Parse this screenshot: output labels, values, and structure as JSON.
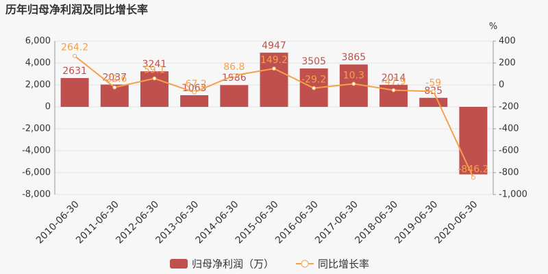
{
  "chart_data": {
    "type": "combo",
    "title": "历年归母净利润及同比增长率",
    "categories": [
      "2010-06-30",
      "2011-06-30",
      "2012-06-30",
      "2013-06-30",
      "2014-06-30",
      "2015-06-30",
      "2016-06-30",
      "2017-06-30",
      "2018-06-30",
      "2019-06-30",
      "2020-06-30"
    ],
    "series": [
      {
        "name": "归母净利润（万）",
        "type": "bar",
        "color": "#c0504d",
        "values": [
          2631,
          2037,
          3241,
          1063,
          1986,
          4947,
          3505,
          3865,
          2014,
          825,
          -6160
        ]
      },
      {
        "name": "同比增长率",
        "type": "line",
        "axis": "y2",
        "color": "#f5a04a",
        "values": [
          264.2,
          -22.6,
          59.1,
          -67.2,
          86.8,
          149.2,
          -29.2,
          10.3,
          -47.9,
          -59,
          -846.2
        ]
      }
    ],
    "ylim": [
      -8000,
      6000
    ],
    "yticks": [
      {
        "value": -8000,
        "label": "-8,000"
      },
      {
        "value": -6000,
        "label": "-6,000"
      },
      {
        "value": -4000,
        "label": "-4,000"
      },
      {
        "value": -2000,
        "label": "-2,000"
      },
      0,
      {
        "value": 2000,
        "label": "2,000"
      },
      {
        "value": 4000,
        "label": "4,000"
      },
      {
        "value": 6000,
        "label": "6,000"
      }
    ],
    "y2lim": [
      -1000,
      400
    ],
    "y2ticks": [
      {
        "value": -1000,
        "label": "-1,000"
      },
      -800,
      -600,
      -400,
      -200,
      0,
      200,
      400
    ],
    "y2_label": "%",
    "grid": true,
    "legend": "bottom"
  }
}
